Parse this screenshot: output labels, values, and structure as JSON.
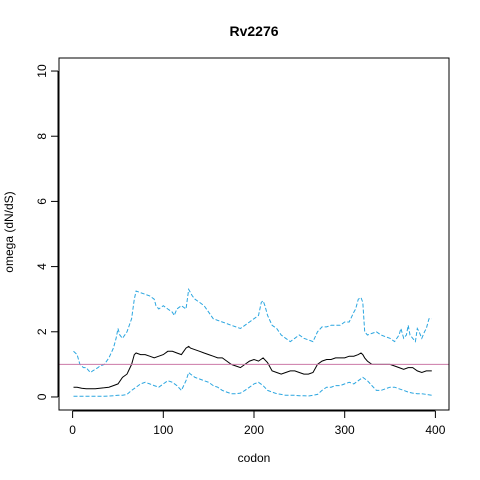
{
  "chart_data": {
    "type": "line",
    "title": "Rv2276",
    "xlabel": "codon",
    "ylabel": "omega (dN/dS)",
    "xlim": [
      -15,
      415
    ],
    "ylim": [
      -0.4,
      10.4
    ],
    "x_ticks": [
      0,
      100,
      200,
      300,
      400
    ],
    "y_ticks": [
      0,
      2,
      4,
      6,
      8,
      10
    ],
    "grid": false,
    "reference_line": {
      "y": 1,
      "color": "#cc79a7"
    },
    "series": [
      {
        "role": "upper",
        "style": "dashed",
        "color": "#2ba6e0",
        "x": [
          1,
          5,
          8,
          12,
          15,
          18,
          20,
          22,
          25,
          28,
          30,
          35,
          40,
          45,
          48,
          50,
          52,
          55,
          60,
          65,
          68,
          70,
          75,
          80,
          85,
          90,
          92,
          95,
          100,
          105,
          110,
          112,
          115,
          120,
          125,
          128,
          130,
          132,
          135,
          140,
          145,
          150,
          155,
          160,
          165,
          170,
          175,
          180,
          185,
          190,
          195,
          200,
          205,
          208,
          210,
          212,
          215,
          220,
          225,
          230,
          235,
          240,
          245,
          250,
          255,
          260,
          265,
          270,
          275,
          280,
          285,
          290,
          295,
          300,
          305,
          310,
          312,
          315,
          318,
          320,
          322,
          325,
          330,
          335,
          340,
          345,
          350,
          355,
          360,
          362,
          365,
          368,
          370,
          372,
          375,
          378,
          380,
          382,
          385,
          388,
          390,
          393,
          396
        ],
        "y": [
          1.4,
          1.3,
          1.0,
          0.9,
          0.9,
          0.8,
          0.75,
          0.8,
          0.85,
          0.9,
          0.95,
          1.0,
          1.2,
          1.5,
          1.8,
          2.1,
          1.9,
          1.8,
          2.0,
          2.4,
          3.0,
          3.25,
          3.2,
          3.15,
          3.1,
          3.0,
          2.8,
          2.7,
          2.8,
          2.7,
          2.6,
          2.5,
          2.7,
          2.8,
          2.7,
          3.3,
          3.2,
          3.1,
          3.0,
          2.9,
          2.8,
          2.6,
          2.4,
          2.35,
          2.3,
          2.25,
          2.2,
          2.15,
          2.1,
          2.2,
          2.3,
          2.4,
          2.5,
          2.9,
          2.95,
          2.8,
          2.5,
          2.2,
          2.1,
          1.9,
          1.8,
          1.7,
          1.8,
          1.9,
          1.8,
          1.75,
          1.7,
          2.0,
          2.15,
          2.15,
          2.2,
          2.2,
          2.2,
          2.3,
          2.3,
          2.6,
          2.7,
          3.0,
          3.05,
          2.9,
          2.0,
          1.9,
          1.95,
          2.0,
          1.9,
          1.85,
          1.8,
          1.7,
          1.9,
          2.1,
          1.8,
          1.9,
          2.2,
          1.9,
          1.8,
          1.7,
          2.1,
          2.0,
          1.8,
          2.0,
          2.1,
          2.4,
          2.4
        ]
      },
      {
        "role": "estimate",
        "style": "solid",
        "color": "#000000",
        "x": [
          1,
          5,
          10,
          15,
          20,
          25,
          30,
          35,
          40,
          45,
          50,
          55,
          60,
          65,
          68,
          70,
          75,
          80,
          85,
          90,
          95,
          100,
          105,
          110,
          115,
          120,
          125,
          128,
          130,
          135,
          140,
          145,
          150,
          155,
          160,
          165,
          170,
          175,
          180,
          185,
          190,
          195,
          200,
          205,
          210,
          215,
          218,
          220,
          225,
          230,
          235,
          240,
          245,
          250,
          255,
          260,
          265,
          270,
          275,
          280,
          285,
          290,
          295,
          300,
          305,
          310,
          315,
          318,
          320,
          322,
          325,
          330,
          335,
          340,
          345,
          350,
          355,
          360,
          365,
          370,
          375,
          380,
          385,
          390,
          396
        ],
        "y": [
          0.3,
          0.3,
          0.27,
          0.25,
          0.25,
          0.25,
          0.27,
          0.28,
          0.3,
          0.35,
          0.4,
          0.6,
          0.7,
          1.0,
          1.3,
          1.35,
          1.3,
          1.3,
          1.25,
          1.2,
          1.25,
          1.3,
          1.4,
          1.4,
          1.35,
          1.3,
          1.5,
          1.55,
          1.5,
          1.45,
          1.4,
          1.35,
          1.3,
          1.25,
          1.2,
          1.2,
          1.1,
          1.0,
          0.95,
          0.9,
          1.0,
          1.1,
          1.15,
          1.1,
          1.2,
          1.05,
          0.9,
          0.8,
          0.75,
          0.7,
          0.75,
          0.8,
          0.8,
          0.75,
          0.7,
          0.7,
          0.75,
          1.0,
          1.1,
          1.15,
          1.15,
          1.2,
          1.2,
          1.2,
          1.25,
          1.25,
          1.3,
          1.35,
          1.3,
          1.2,
          1.1,
          1.0,
          1.0,
          1.0,
          1.0,
          1.0,
          0.95,
          0.9,
          0.85,
          0.9,
          0.9,
          0.8,
          0.75,
          0.8,
          0.8
        ]
      },
      {
        "role": "lower",
        "style": "dashed",
        "color": "#2ba6e0",
        "x": [
          1,
          5,
          10,
          15,
          20,
          25,
          30,
          35,
          40,
          45,
          50,
          55,
          60,
          65,
          70,
          75,
          80,
          85,
          90,
          95,
          100,
          105,
          110,
          115,
          120,
          125,
          128,
          130,
          135,
          140,
          145,
          150,
          155,
          160,
          165,
          170,
          175,
          180,
          185,
          190,
          195,
          200,
          205,
          210,
          215,
          220,
          225,
          230,
          235,
          240,
          245,
          250,
          255,
          260,
          265,
          270,
          275,
          280,
          285,
          290,
          295,
          300,
          305,
          310,
          315,
          320,
          325,
          330,
          335,
          340,
          345,
          350,
          355,
          360,
          365,
          370,
          375,
          380,
          385,
          390,
          396
        ],
        "y": [
          0.02,
          0.02,
          0.02,
          0.02,
          0.02,
          0.02,
          0.02,
          0.02,
          0.03,
          0.04,
          0.05,
          0.05,
          0.08,
          0.2,
          0.3,
          0.4,
          0.45,
          0.4,
          0.35,
          0.3,
          0.4,
          0.5,
          0.45,
          0.35,
          0.2,
          0.5,
          0.75,
          0.7,
          0.6,
          0.55,
          0.5,
          0.45,
          0.35,
          0.3,
          0.2,
          0.15,
          0.1,
          0.1,
          0.12,
          0.2,
          0.3,
          0.4,
          0.45,
          0.35,
          0.2,
          0.15,
          0.1,
          0.08,
          0.05,
          0.05,
          0.05,
          0.04,
          0.04,
          0.03,
          0.05,
          0.08,
          0.2,
          0.3,
          0.3,
          0.35,
          0.35,
          0.4,
          0.45,
          0.4,
          0.5,
          0.6,
          0.5,
          0.35,
          0.2,
          0.2,
          0.25,
          0.3,
          0.3,
          0.25,
          0.2,
          0.15,
          0.12,
          0.1,
          0.1,
          0.08,
          0.05
        ]
      }
    ]
  }
}
